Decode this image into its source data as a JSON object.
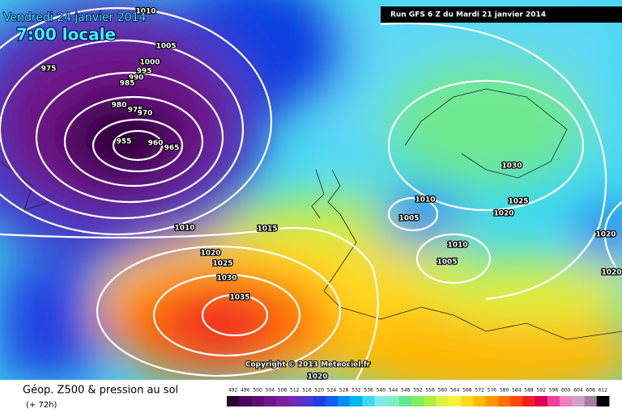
{
  "header": {
    "date": "Vendredi 24 janvier 2014",
    "time": "7:00 locale",
    "run": "Run GFS 6 Z du Mardi 21 janvier 2014",
    "copyright": "Copyright © 2013 Meteociel.fr"
  },
  "legend": {
    "title": "Géop. Z500 & pression au sol",
    "subtitle": "(+ 72h)",
    "labels": [
      492,
      496,
      500,
      504,
      508,
      512,
      516,
      520,
      524,
      528,
      532,
      536,
      540,
      544,
      548,
      552,
      556,
      560,
      564,
      568,
      572,
      576,
      580,
      584,
      588,
      592,
      596,
      600,
      604,
      608,
      612
    ],
    "colors": [
      "#2a0033",
      "#4a0a5a",
      "#5c1070",
      "#6e1888",
      "#7f20a0",
      "#7828b8",
      "#4a3ad0",
      "#2040e0",
      "#1060f0",
      "#0090f0",
      "#00b8f0",
      "#40d8f0",
      "#80e8f0",
      "#80f0c0",
      "#60e890",
      "#80f060",
      "#b0f040",
      "#e0f040",
      "#fff040",
      "#ffd820",
      "#ffb800",
      "#ff9800",
      "#ff7000",
      "#ff4800",
      "#f02020",
      "#e00050",
      "#f040a0",
      "#f080c0",
      "#d0a0d0",
      "#a080a0",
      "#000000"
    ]
  },
  "isobar_labels": [
    975,
    1010,
    1005,
    1000,
    995,
    990,
    985,
    980,
    975,
    970,
    955,
    960,
    965,
    1010,
    1015,
    1020,
    1025,
    1030,
    1035,
    1030,
    1025,
    1020,
    1010,
    1005,
    1010,
    1005,
    1020,
    1020,
    1020
  ]
}
